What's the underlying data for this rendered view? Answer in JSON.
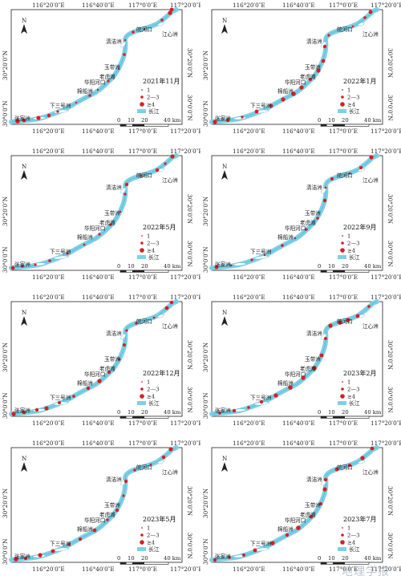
{
  "figure": {
    "x_ticks": [
      "116°20′0″E",
      "116°40′0″E",
      "117°0′0″E",
      "117°20′0″E"
    ],
    "y_ticks": [
      "30°20′0″N",
      "30°0′0″N"
    ],
    "north_label": "N",
    "places": [
      "皖河口",
      "江心洲",
      "清洁洲",
      "玉带洲",
      "老虎滩",
      "华阳河口",
      "棉船洲",
      "下三号洲",
      "张家洲"
    ],
    "legend": {
      "items": [
        {
          "label": "1",
          "marker": "small-dot"
        },
        {
          "label": "2—3",
          "marker": "medium-dot"
        },
        {
          "label": "≥4",
          "marker": "large-dot"
        },
        {
          "label": "长江",
          "marker": "river-swatch"
        }
      ]
    },
    "scale": {
      "ticks": [
        "0",
        "10",
        "20"
      ],
      "end_label": "40 km"
    },
    "colors": {
      "river": "#7fd0e6",
      "river_edge": "#4fb2cf",
      "dot": "#d62020",
      "text": "#222222"
    },
    "watermark": "地理学报"
  },
  "panels": [
    {
      "title": "2021年11月"
    },
    {
      "title": "2022年1月"
    },
    {
      "title": "2022年5月"
    },
    {
      "title": "2022年9月"
    },
    {
      "title": "2022年12月"
    },
    {
      "title": "2023年2月"
    },
    {
      "title": "2023年5月"
    },
    {
      "title": "2023年7月"
    }
  ]
}
